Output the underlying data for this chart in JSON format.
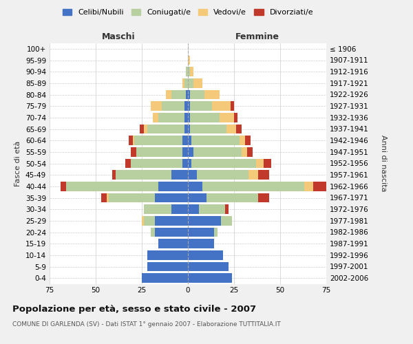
{
  "age_groups": [
    "0-4",
    "5-9",
    "10-14",
    "15-19",
    "20-24",
    "25-29",
    "30-34",
    "35-39",
    "40-44",
    "45-49",
    "50-54",
    "55-59",
    "60-64",
    "65-69",
    "70-74",
    "75-79",
    "80-84",
    "85-89",
    "90-94",
    "95-99",
    "100+"
  ],
  "birth_years": [
    "2002-2006",
    "1997-2001",
    "1992-1996",
    "1987-1991",
    "1982-1986",
    "1977-1981",
    "1972-1976",
    "1967-1971",
    "1962-1966",
    "1957-1961",
    "1952-1956",
    "1947-1951",
    "1942-1946",
    "1937-1941",
    "1932-1936",
    "1927-1931",
    "1922-1926",
    "1917-1921",
    "1912-1916",
    "1907-1911",
    "≤ 1906"
  ],
  "maschi": {
    "celibi": [
      25,
      22,
      22,
      16,
      18,
      18,
      9,
      18,
      16,
      9,
      3,
      3,
      3,
      2,
      2,
      2,
      1,
      0,
      0,
      0,
      0
    ],
    "coniugati": [
      0,
      0,
      0,
      0,
      2,
      6,
      15,
      25,
      50,
      30,
      28,
      25,
      26,
      20,
      14,
      12,
      8,
      2,
      1,
      0,
      0
    ],
    "vedovi": [
      0,
      0,
      0,
      0,
      0,
      1,
      0,
      1,
      0,
      0,
      0,
      0,
      1,
      2,
      3,
      6,
      3,
      1,
      0,
      0,
      0
    ],
    "divorziati": [
      0,
      0,
      0,
      0,
      0,
      0,
      0,
      3,
      3,
      2,
      3,
      3,
      2,
      2,
      0,
      0,
      0,
      0,
      0,
      0,
      0
    ]
  },
  "femmine": {
    "nubili": [
      24,
      22,
      19,
      14,
      14,
      18,
      6,
      10,
      8,
      5,
      2,
      3,
      2,
      1,
      1,
      1,
      1,
      0,
      0,
      0,
      0
    ],
    "coniugate": [
      0,
      0,
      0,
      0,
      2,
      6,
      14,
      28,
      55,
      28,
      35,
      26,
      26,
      20,
      16,
      12,
      8,
      3,
      1,
      0,
      0
    ],
    "vedove": [
      0,
      0,
      0,
      0,
      0,
      0,
      0,
      0,
      5,
      5,
      4,
      3,
      3,
      5,
      8,
      10,
      8,
      5,
      2,
      1,
      0
    ],
    "divorziate": [
      0,
      0,
      0,
      0,
      0,
      0,
      2,
      6,
      10,
      6,
      4,
      3,
      3,
      3,
      2,
      2,
      0,
      0,
      0,
      0,
      0
    ]
  },
  "colors": {
    "celibi": "#4472c4",
    "coniugati": "#b8cfa0",
    "vedovi": "#f5c97a",
    "divorziati": "#c0392b"
  },
  "xlim": 75,
  "title": "Popolazione per età, sesso e stato civile - 2007",
  "subtitle": "COMUNE DI GARLENDA (SV) - Dati ISTAT 1° gennaio 2007 - Elaborazione TUTTITALIA.IT",
  "ylabel_left": "Fasce di età",
  "ylabel_right": "Anni di nascita",
  "xlabel_left": "Maschi",
  "xlabel_right": "Femmine",
  "bg_color": "#f0f0f0",
  "plot_bg": "#ffffff"
}
